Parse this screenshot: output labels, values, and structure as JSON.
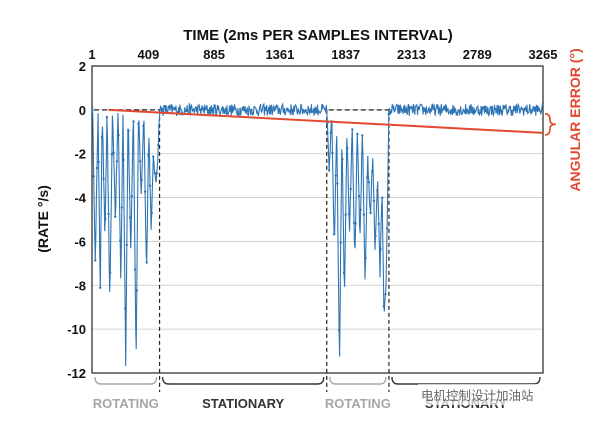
{
  "chart_data": {
    "type": "line",
    "title": "TIME (2ms PER SAMPLES INTERVAL)",
    "ylabel": "(RATE °/s)",
    "ylabel_right": "ANGULAR ERROR (°)",
    "xlim": [
      1,
      3265
    ],
    "ylim": [
      -12,
      2
    ],
    "x_ticks": [
      "1",
      "409",
      "885",
      "1361",
      "1837",
      "2313",
      "2789",
      "3265"
    ],
    "y_ticks": [
      "2",
      "0",
      "-2",
      "-4",
      "-6",
      "-8",
      "-10",
      "-12"
    ],
    "grid": true,
    "colors": {
      "rate": "#2e75b6",
      "angular_error": "#e2492e",
      "phase": "#333333",
      "phase_rotating": "#a6a6a6"
    },
    "phases": [
      {
        "label": "ROTATING",
        "start": 1,
        "end": 490
      },
      {
        "label": "STATIONARY",
        "start": 490,
        "end": 1700
      },
      {
        "label": "ROTATING",
        "start": 1700,
        "end": 2150
      },
      {
        "label": "STATIONARY",
        "start": 2150,
        "end": 3265
      }
    ],
    "phase_boundaries": [
      490,
      1700,
      2150
    ],
    "series": [
      {
        "values_note_points": [
          [
            5,
            0
          ],
          [
            25,
            -7
          ],
          [
            45,
            0
          ],
          [
            60,
            -8.5
          ],
          [
            75,
            0
          ],
          [
            95,
            -6
          ],
          [
            110,
            0
          ],
          [
            130,
            -9
          ],
          [
            150,
            0
          ],
          [
            170,
            -5
          ],
          [
            190,
            0
          ],
          [
            210,
            -8
          ],
          [
            225,
            0
          ],
          [
            245,
            -11.6
          ],
          [
            262,
            0
          ],
          [
            282,
            -6.5
          ],
          [
            300,
            0
          ],
          [
            320,
            -11.5
          ],
          [
            338,
            0
          ],
          [
            358,
            -4
          ],
          [
            376,
            0
          ],
          [
            395,
            -7.5
          ],
          [
            412,
            -1
          ],
          [
            430,
            -5.5
          ],
          [
            446,
            -2
          ],
          [
            462,
            -3.5
          ],
          [
            478,
            -2
          ],
          [
            490,
            0
          ],
          [
            1700,
            0
          ],
          [
            1718,
            -3
          ],
          [
            1735,
            0
          ],
          [
            1755,
            -6.5
          ],
          [
            1772,
            -0.5
          ],
          [
            1792,
            -11.6
          ],
          [
            1810,
            -1
          ],
          [
            1828,
            -8.5
          ],
          [
            1846,
            -1
          ],
          [
            1865,
            -5.5
          ],
          [
            1884,
            -0.5
          ],
          [
            1903,
            -7
          ],
          [
            1921,
            -1
          ],
          [
            1940,
            -6
          ],
          [
            1958,
            -1
          ],
          [
            1978,
            -8
          ],
          [
            1996,
            -2
          ],
          [
            2015,
            -5
          ],
          [
            2033,
            -2
          ],
          [
            2050,
            -6.5
          ],
          [
            2068,
            -3
          ],
          [
            2085,
            -7.5
          ],
          [
            2100,
            -3.5
          ],
          [
            2115,
            -9.5
          ],
          [
            2130,
            -8
          ],
          [
            2150,
            0
          ]
        ]
      },
      {
        "name": "",
        "values": [
          [
            120,
            0
          ],
          [
            3265,
            -1.05
          ]
        ]
      }
    ]
  },
  "footer": {
    "watermark": "电机控制设计加油站"
  }
}
